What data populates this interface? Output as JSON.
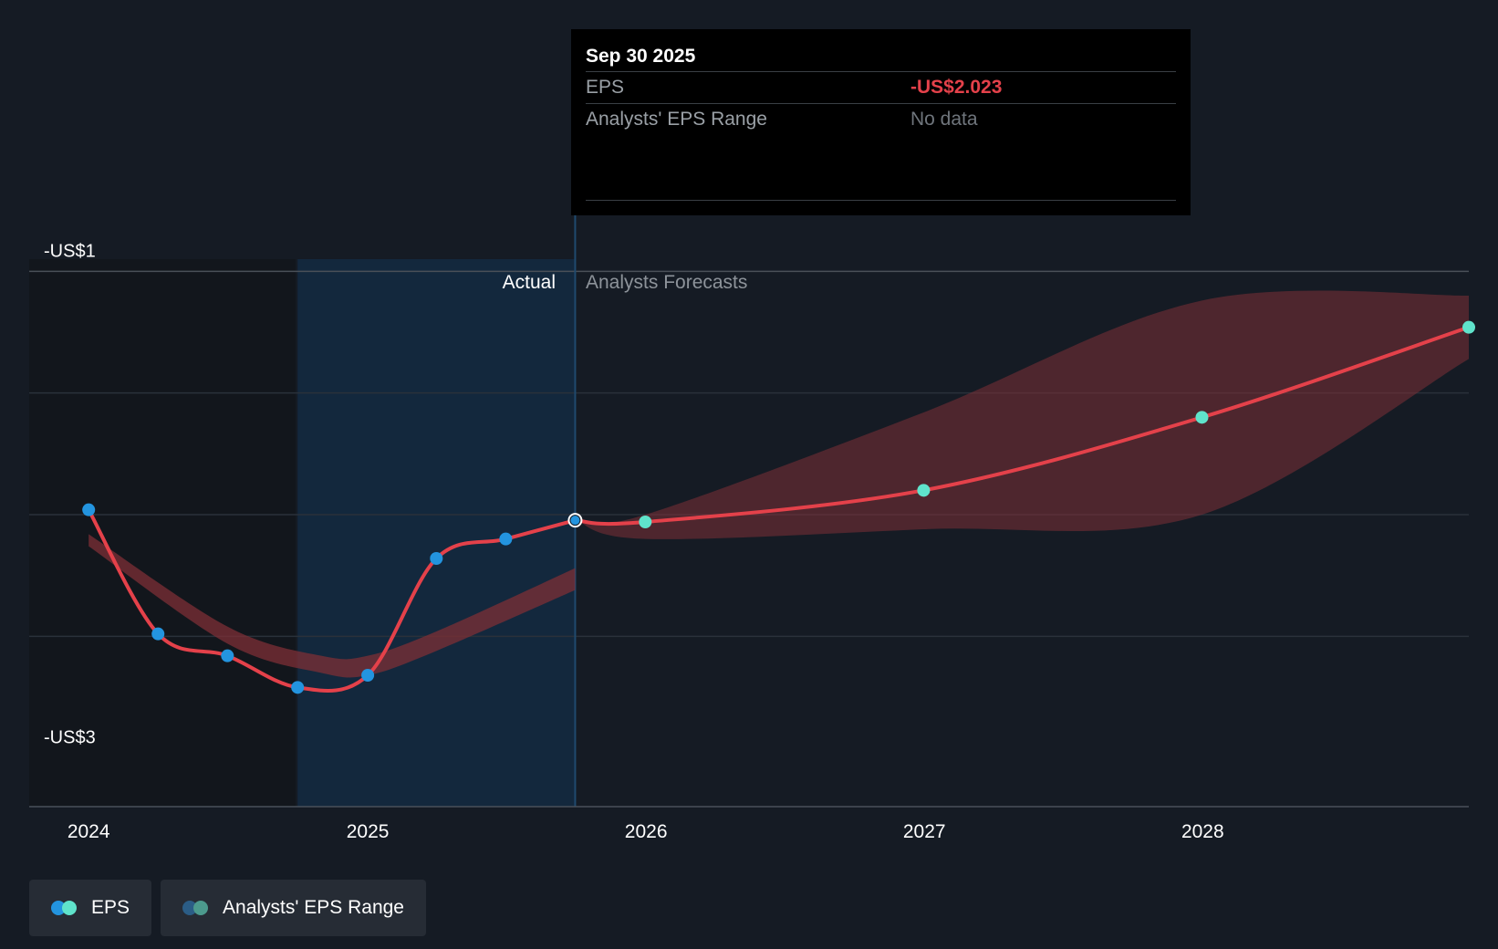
{
  "tooltip": {
    "date": "Sep 30 2025",
    "rows": [
      {
        "label": "EPS",
        "value": "-US$2.023"
      },
      {
        "label": "Analysts' EPS Range",
        "value": "No data"
      }
    ]
  },
  "legend": {
    "items": [
      {
        "label": "EPS"
      },
      {
        "label": "Analysts' EPS Range"
      }
    ]
  },
  "colors": {
    "background": "#151b24",
    "actual_region": "#13283d",
    "eps_line": "#e4414a",
    "actual_point": "#2394df",
    "forecast_point": "#5fe3cb",
    "range_band": "#7d2f36"
  },
  "chart_data": {
    "type": "line",
    "y_labels": [
      "-US$1",
      "-US$3"
    ],
    "y_label_values": [
      -1,
      -3
    ],
    "ylim": [
      -3.2,
      -0.95
    ],
    "xlim": [
      "2023-10-15",
      "2028-12-15"
    ],
    "x_ticks": [
      "2024",
      "2025",
      "2026",
      "2027",
      "2028"
    ],
    "x_tick_dates": [
      "2024-01-01",
      "2025-01-01",
      "2026-01-01",
      "2027-01-01",
      "2028-01-01"
    ],
    "region_labels": {
      "actual": "Actual",
      "forecast": "Analysts Forecasts"
    },
    "actual_region": [
      "2024-10-01",
      "2025-09-30"
    ],
    "divider_date": "2025-09-30",
    "grid": true,
    "legend_placement": "bottom-left",
    "series": [
      {
        "name": "EPS",
        "role": "actual",
        "points": [
          {
            "x": "2024-01-01",
            "y": -1.98
          },
          {
            "x": "2024-04-01",
            "y": -2.49
          },
          {
            "x": "2024-07-01",
            "y": -2.58
          },
          {
            "x": "2024-10-01",
            "y": -2.71
          },
          {
            "x": "2025-01-01",
            "y": -2.66
          },
          {
            "x": "2025-04-01",
            "y": -2.18
          },
          {
            "x": "2025-07-01",
            "y": -2.1
          },
          {
            "x": "2025-09-30",
            "y": -2.023
          }
        ]
      },
      {
        "name": "EPS",
        "role": "forecast",
        "points": [
          {
            "x": "2025-09-30",
            "y": -2.023
          },
          {
            "x": "2025-12-31",
            "y": -2.03
          },
          {
            "x": "2026-12-31",
            "y": -1.9
          },
          {
            "x": "2027-12-31",
            "y": -1.6
          },
          {
            "x": "2028-12-15",
            "y": -1.23
          }
        ]
      }
    ],
    "range_band": {
      "name": "Analysts' EPS Range",
      "points": [
        {
          "x": "2024-01-01",
          "high": -2.08,
          "low": -2.13
        },
        {
          "x": "2024-07-01",
          "high": -2.46,
          "low": -2.53
        },
        {
          "x": "2024-11-01",
          "high": -2.58,
          "low": -2.65
        },
        {
          "x": "2025-01-01",
          "high": -2.58,
          "low": -2.66
        },
        {
          "x": "2025-04-01",
          "high": -2.48,
          "low": -2.56
        },
        {
          "x": "2025-09-30",
          "high": -2.22,
          "low": -2.31
        }
      ]
    },
    "forecast_band": {
      "name": "Analysts' EPS Range",
      "points": [
        {
          "x": "2025-09-30",
          "high": -2.02,
          "low": -2.02
        },
        {
          "x": "2025-12-31",
          "high": -2.0,
          "low": -2.1
        },
        {
          "x": "2026-12-31",
          "high": -1.58,
          "low": -2.06
        },
        {
          "x": "2027-12-31",
          "high": -1.12,
          "low": -2.0
        },
        {
          "x": "2028-12-15",
          "high": -1.1,
          "low": -1.36
        }
      ]
    }
  }
}
